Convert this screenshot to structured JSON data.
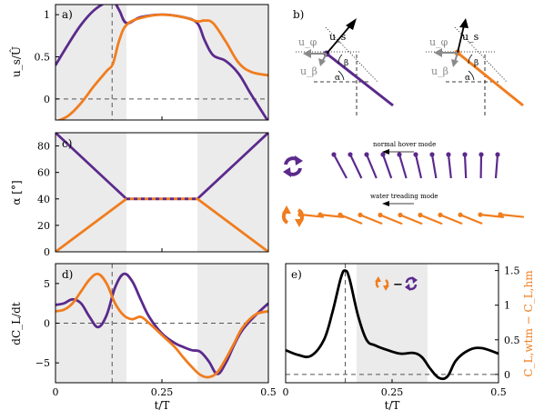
{
  "colors": {
    "purple": "#5b2a8c",
    "orange": "#f07d1e",
    "shade": "#ebebeb",
    "black": "#000000"
  },
  "panel_labels": {
    "a": "a)",
    "b": "b)",
    "c": "c)",
    "d": "d)",
    "e": "e)"
  },
  "axis_text": {
    "a_ylabel": "u_s/Û",
    "c_ylabel": "α [°]",
    "d_ylabel": "dC_L/dt",
    "e_ylabel_right": "C_L,wtm − C_L,hm",
    "xlabel": "t/T"
  },
  "panel_b_text": {
    "u_s": "u_s",
    "u_phi": "u_φ",
    "u_beta": "u_β",
    "beta": "β",
    "alpha": "α"
  },
  "mode_labels": {
    "hover": "normal hover mode",
    "treading": "water treading mode"
  },
  "e_legend_minus": "−",
  "chart_data": [
    {
      "panel": "a",
      "type": "line",
      "xlabel": "t/T",
      "ylabel": "u_s/Û",
      "xlim": [
        0,
        0.5
      ],
      "ylim": [
        -0.25,
        1.12
      ],
      "x_ticks": [],
      "y_ticks": [
        0,
        0.5,
        1
      ],
      "y_tick_labels": [
        "0",
        "0.5",
        "1"
      ],
      "shaded_x": [
        [
          0,
          0.1667
        ],
        [
          0.3333,
          0.5
        ]
      ],
      "vline_x": 0.133,
      "hline_y": 0,
      "series": [
        {
          "color": "purple",
          "x": [
            0,
            0.03,
            0.06,
            0.09,
            0.12,
            0.135,
            0.15,
            0.167,
            0.2,
            0.25,
            0.3,
            0.333,
            0.35,
            0.37,
            0.4,
            0.43,
            0.46,
            0.5
          ],
          "y": [
            0.4,
            0.65,
            0.88,
            1.05,
            1.15,
            1.17,
            1.05,
            0.9,
            0.97,
            1.0,
            0.97,
            0.9,
            0.7,
            0.52,
            0.45,
            0.3,
            0.05,
            -0.27
          ]
        },
        {
          "color": "orange",
          "x": [
            0,
            0.03,
            0.06,
            0.09,
            0.12,
            0.135,
            0.15,
            0.167,
            0.2,
            0.25,
            0.3,
            0.333,
            0.35,
            0.37,
            0.4,
            0.43,
            0.46,
            0.5
          ],
          "y": [
            -0.27,
            -0.2,
            -0.05,
            0.15,
            0.33,
            0.42,
            0.7,
            0.88,
            0.96,
            1.0,
            0.97,
            0.92,
            0.93,
            0.9,
            0.68,
            0.43,
            0.32,
            0.28
          ]
        }
      ]
    },
    {
      "panel": "c",
      "type": "line",
      "xlabel": "t/T",
      "ylabel": "α [°]",
      "xlim": [
        0,
        0.5
      ],
      "ylim": [
        0,
        90
      ],
      "x_ticks": [],
      "y_ticks": [
        0,
        20,
        40,
        60,
        80
      ],
      "y_tick_labels": [
        "0",
        "20",
        "40",
        "60",
        "80"
      ],
      "shaded_x": [
        [
          0,
          0.1667
        ],
        [
          0.3333,
          0.5
        ]
      ],
      "series": [
        {
          "color": "purple",
          "x": [
            0,
            0.1667,
            0.3333,
            0.5
          ],
          "y": [
            90,
            40,
            40,
            90
          ]
        },
        {
          "color": "orange",
          "x": [
            0,
            0.1667,
            0.3333,
            0.5
          ],
          "y": [
            0,
            40,
            40,
            0
          ],
          "dashed_segment": [
            0.1667,
            0.3333
          ]
        }
      ]
    },
    {
      "panel": "d",
      "type": "line",
      "xlabel": "t/T",
      "ylabel": "dC_L/dt",
      "xlim": [
        0,
        0.5
      ],
      "ylim": [
        -7.5,
        7.5
      ],
      "x_ticks": [
        0,
        0.25,
        0.5
      ],
      "x_tick_labels": [
        "0",
        "0.25",
        "0.5"
      ],
      "y_ticks": [
        -5,
        0,
        5
      ],
      "y_tick_labels": [
        "−5",
        "0",
        "5"
      ],
      "shaded_x": [
        [
          0,
          0.1667
        ],
        [
          0.3333,
          0.5
        ]
      ],
      "vline_x": 0.133,
      "hline_y": 0,
      "series": [
        {
          "color": "purple",
          "x": [
            0,
            0.02,
            0.04,
            0.06,
            0.08,
            0.1,
            0.12,
            0.14,
            0.16,
            0.18,
            0.2,
            0.22,
            0.25,
            0.28,
            0.3,
            0.32,
            0.34,
            0.36,
            0.38,
            0.4,
            0.42,
            0.44,
            0.47,
            0.5
          ],
          "y": [
            2.3,
            2.5,
            3.0,
            2.5,
            0.8,
            -0.5,
            1.0,
            4.5,
            6.2,
            5.3,
            3.0,
            0.8,
            -1.3,
            -2.5,
            -3.0,
            -3.4,
            -3.6,
            -4.8,
            -6.4,
            -5.0,
            -2.7,
            -0.8,
            1.0,
            2.5
          ]
        },
        {
          "color": "orange",
          "x": [
            0,
            0.02,
            0.04,
            0.06,
            0.08,
            0.1,
            0.12,
            0.14,
            0.16,
            0.18,
            0.2,
            0.22,
            0.25,
            0.28,
            0.3,
            0.32,
            0.34,
            0.36,
            0.38,
            0.4,
            0.42,
            0.44,
            0.47,
            0.5
          ],
          "y": [
            1.5,
            1.7,
            2.5,
            4.0,
            5.5,
            6.2,
            5.0,
            2.5,
            1.0,
            0.5,
            0.8,
            0.0,
            -1.5,
            -3.0,
            -4.3,
            -5.5,
            -6.5,
            -6.8,
            -6.2,
            -4.5,
            -2.5,
            -0.5,
            1.1,
            1.5
          ]
        }
      ]
    },
    {
      "panel": "e",
      "type": "line",
      "xlabel": "t/T",
      "ylabel": "C_L,wtm − C_L,hm",
      "xlim": [
        0,
        0.5
      ],
      "ylim": [
        -0.12,
        1.6
      ],
      "x_ticks": [
        0,
        0.25,
        0.5
      ],
      "x_tick_labels": [
        "0",
        "0.25",
        "0.5"
      ],
      "y_ticks": [
        0,
        0.5,
        1,
        1.5
      ],
      "y_tick_labels": [
        "0",
        "0.5",
        "1",
        "1.5"
      ],
      "shaded_x": [
        [
          0.1667,
          0.3333
        ]
      ],
      "vline_x": 0.14,
      "hline_y": 0,
      "series": [
        {
          "color": "black",
          "x": [
            0,
            0.03,
            0.06,
            0.09,
            0.11,
            0.13,
            0.14,
            0.15,
            0.17,
            0.19,
            0.21,
            0.24,
            0.27,
            0.3,
            0.32,
            0.34,
            0.36,
            0.38,
            0.4,
            0.43,
            0.46,
            0.5
          ],
          "y": [
            0.35,
            0.28,
            0.27,
            0.5,
            0.9,
            1.4,
            1.5,
            1.38,
            0.85,
            0.5,
            0.42,
            0.35,
            0.3,
            0.31,
            0.25,
            0.08,
            -0.05,
            -0.03,
            0.2,
            0.35,
            0.38,
            0.3
          ]
        }
      ]
    }
  ]
}
